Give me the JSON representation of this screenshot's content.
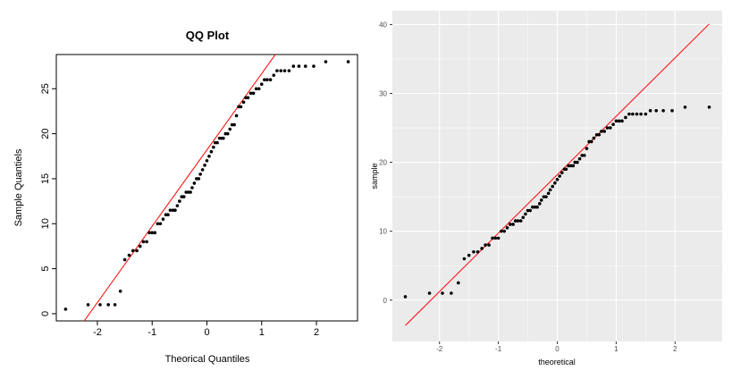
{
  "chart_data": [
    {
      "type": "scatter",
      "style": "base-r",
      "title": "QQ Plot",
      "xlabel": "Theorical Quantiles",
      "ylabel": "Sample Quantiels",
      "xlim": [
        -2.75,
        2.75
      ],
      "ylim": [
        -0.8,
        28.8
      ],
      "xticks": [
        -2,
        -1,
        0,
        1,
        2
      ],
      "yticks": [
        0,
        5,
        10,
        15,
        20,
        25
      ],
      "points": [
        [
          -2.58,
          0.5
        ],
        [
          -2.17,
          1.0
        ],
        [
          -1.95,
          1.0
        ],
        [
          -1.8,
          1.0
        ],
        [
          -1.68,
          1.0
        ],
        [
          -1.58,
          2.5
        ],
        [
          -1.5,
          6.0
        ],
        [
          -1.42,
          6.5
        ],
        [
          -1.35,
          7.0
        ],
        [
          -1.28,
          7.0
        ],
        [
          -1.22,
          7.5
        ],
        [
          -1.16,
          8.0
        ],
        [
          -1.1,
          8.0
        ],
        [
          -1.05,
          9.0
        ],
        [
          -1.0,
          9.0
        ],
        [
          -0.95,
          9.0
        ],
        [
          -0.9,
          10.0
        ],
        [
          -0.85,
          10.0
        ],
        [
          -0.8,
          10.5
        ],
        [
          -0.75,
          11.0
        ],
        [
          -0.71,
          11.0
        ],
        [
          -0.67,
          11.5
        ],
        [
          -0.62,
          11.5
        ],
        [
          -0.58,
          11.5
        ],
        [
          -0.54,
          12.0
        ],
        [
          -0.5,
          12.5
        ],
        [
          -0.46,
          13.0
        ],
        [
          -0.42,
          13.0
        ],
        [
          -0.38,
          13.5
        ],
        [
          -0.34,
          13.5
        ],
        [
          -0.3,
          13.5
        ],
        [
          -0.27,
          14.0
        ],
        [
          -0.23,
          14.5
        ],
        [
          -0.19,
          15.0
        ],
        [
          -0.15,
          15.0
        ],
        [
          -0.12,
          15.5
        ],
        [
          -0.08,
          16.0
        ],
        [
          -0.04,
          16.5
        ],
        [
          0.0,
          17.0
        ],
        [
          0.04,
          17.5
        ],
        [
          0.08,
          18.0
        ],
        [
          0.12,
          18.5
        ],
        [
          0.15,
          19.0
        ],
        [
          0.19,
          19.0
        ],
        [
          0.23,
          19.5
        ],
        [
          0.27,
          19.5
        ],
        [
          0.3,
          19.5
        ],
        [
          0.34,
          20.0
        ],
        [
          0.38,
          20.0
        ],
        [
          0.42,
          20.5
        ],
        [
          0.46,
          21.0
        ],
        [
          0.5,
          21.0
        ],
        [
          0.54,
          22.0
        ],
        [
          0.58,
          23.0
        ],
        [
          0.62,
          23.0
        ],
        [
          0.67,
          23.5
        ],
        [
          0.71,
          24.0
        ],
        [
          0.75,
          24.0
        ],
        [
          0.8,
          24.5
        ],
        [
          0.85,
          24.5
        ],
        [
          0.9,
          25.0
        ],
        [
          0.95,
          25.0
        ],
        [
          1.0,
          25.5
        ],
        [
          1.05,
          26.0
        ],
        [
          1.1,
          26.0
        ],
        [
          1.16,
          26.0
        ],
        [
          1.22,
          26.5
        ],
        [
          1.28,
          27.0
        ],
        [
          1.35,
          27.0
        ],
        [
          1.42,
          27.0
        ],
        [
          1.5,
          27.0
        ],
        [
          1.58,
          27.5
        ],
        [
          1.68,
          27.5
        ],
        [
          1.8,
          27.5
        ],
        [
          1.95,
          27.5
        ],
        [
          2.17,
          28.0
        ],
        [
          2.58,
          28.0
        ]
      ],
      "reference_line": {
        "intercept": 18.2,
        "slope": 8.48,
        "color": "#ff0000"
      },
      "point_color": "#000000",
      "grid": false,
      "legend": "none"
    },
    {
      "type": "scatter",
      "style": "ggplot2",
      "title": "",
      "xlabel": "theoretical",
      "ylabel": "sample",
      "xlim": [
        -2.8,
        2.8
      ],
      "ylim": [
        -6,
        42
      ],
      "xticks": [
        -2,
        -1,
        0,
        1,
        2
      ],
      "yticks": [
        0,
        10,
        20,
        30,
        40
      ],
      "points": [
        [
          -2.58,
          0.5
        ],
        [
          -2.17,
          1.0
        ],
        [
          -1.95,
          1.0
        ],
        [
          -1.8,
          1.0
        ],
        [
          -1.68,
          2.5
        ],
        [
          -1.58,
          6.0
        ],
        [
          -1.5,
          6.5
        ],
        [
          -1.42,
          7.0
        ],
        [
          -1.35,
          7.0
        ],
        [
          -1.28,
          7.5
        ],
        [
          -1.22,
          8.0
        ],
        [
          -1.16,
          8.0
        ],
        [
          -1.1,
          9.0
        ],
        [
          -1.05,
          9.0
        ],
        [
          -1.0,
          9.0
        ],
        [
          -0.95,
          10.0
        ],
        [
          -0.9,
          10.0
        ],
        [
          -0.85,
          10.5
        ],
        [
          -0.8,
          11.0
        ],
        [
          -0.75,
          11.0
        ],
        [
          -0.71,
          11.5
        ],
        [
          -0.67,
          11.5
        ],
        [
          -0.62,
          11.5
        ],
        [
          -0.58,
          12.0
        ],
        [
          -0.54,
          12.5
        ],
        [
          -0.5,
          13.0
        ],
        [
          -0.46,
          13.0
        ],
        [
          -0.42,
          13.5
        ],
        [
          -0.38,
          13.5
        ],
        [
          -0.34,
          13.5
        ],
        [
          -0.3,
          14.0
        ],
        [
          -0.27,
          14.5
        ],
        [
          -0.23,
          15.0
        ],
        [
          -0.19,
          15.0
        ],
        [
          -0.15,
          15.5
        ],
        [
          -0.12,
          16.0
        ],
        [
          -0.08,
          16.5
        ],
        [
          -0.04,
          17.0
        ],
        [
          0.0,
          17.5
        ],
        [
          0.04,
          18.0
        ],
        [
          0.08,
          18.5
        ],
        [
          0.12,
          19.0
        ],
        [
          0.15,
          19.0
        ],
        [
          0.19,
          19.5
        ],
        [
          0.23,
          19.5
        ],
        [
          0.27,
          19.5
        ],
        [
          0.3,
          20.0
        ],
        [
          0.34,
          20.0
        ],
        [
          0.38,
          20.5
        ],
        [
          0.42,
          21.0
        ],
        [
          0.46,
          21.0
        ],
        [
          0.5,
          22.0
        ],
        [
          0.54,
          23.0
        ],
        [
          0.58,
          23.0
        ],
        [
          0.62,
          23.5
        ],
        [
          0.67,
          24.0
        ],
        [
          0.71,
          24.0
        ],
        [
          0.75,
          24.5
        ],
        [
          0.8,
          24.5
        ],
        [
          0.85,
          25.0
        ],
        [
          0.9,
          25.0
        ],
        [
          0.95,
          25.5
        ],
        [
          1.0,
          26.0
        ],
        [
          1.05,
          26.0
        ],
        [
          1.1,
          26.0
        ],
        [
          1.16,
          26.5
        ],
        [
          1.22,
          27.0
        ],
        [
          1.28,
          27.0
        ],
        [
          1.35,
          27.0
        ],
        [
          1.42,
          27.0
        ],
        [
          1.5,
          27.0
        ],
        [
          1.58,
          27.5
        ],
        [
          1.68,
          27.5
        ],
        [
          1.8,
          27.5
        ],
        [
          1.95,
          27.5
        ],
        [
          2.17,
          28.0
        ],
        [
          2.58,
          28.0
        ]
      ],
      "reference_line": {
        "intercept": 18.2,
        "slope": 8.48,
        "color": "#ff0000"
      },
      "point_color": "#000000",
      "panel_background": "#ebebeb",
      "gridline_color": "#ffffff",
      "grid": true,
      "legend": "none"
    }
  ]
}
